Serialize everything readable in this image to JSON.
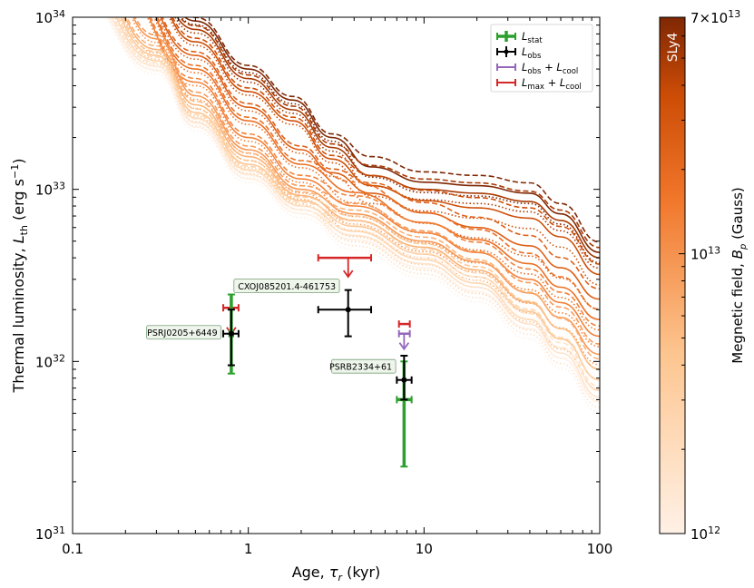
{
  "chart_data": {
    "type": "line",
    "xlabel": "Age, τ_r (kyr)",
    "ylabel": "Thermal luminosity, L_th (erg s⁻¹)",
    "xscale": "log",
    "yscale": "log",
    "xlim": [
      0.1,
      100
    ],
    "ylim": [
      1e+31,
      1e+34
    ],
    "xticks": [
      {
        "v": 0.1,
        "label": "0.1"
      },
      {
        "v": 1,
        "label": "1"
      },
      {
        "v": 10,
        "label": "10"
      },
      {
        "v": 100,
        "label": "100"
      }
    ],
    "yticks": [
      {
        "v": 1e+31,
        "base": "10",
        "exp": "31"
      },
      {
        "v": 1e+32,
        "base": "10",
        "exp": "32"
      },
      {
        "v": 1e+33,
        "base": "10",
        "exp": "33"
      },
      {
        "v": 1e+34,
        "base": "10",
        "exp": "34"
      }
    ],
    "grid": false,
    "legend_position": "top-right",
    "legend": [
      {
        "key": "stat",
        "main": "L",
        "sub": "stat",
        "extra": "",
        "color": "#2ca02c"
      },
      {
        "key": "obs",
        "main": "L",
        "sub": "obs",
        "extra": "",
        "color": "#000000"
      },
      {
        "key": "obs_cool",
        "main": "L",
        "sub": "obs",
        "extra": " + L",
        "sub2": "cool",
        "color": "#9467bd"
      },
      {
        "key": "max_cool",
        "main": "L",
        "sub": "max",
        "extra": " + L",
        "sub2": "cool",
        "color": "#d62728"
      }
    ],
    "colorbar": {
      "label": "Megnetic field, B_p (Gauss)",
      "eos_label": "SLy4",
      "min": 1000000000000.0,
      "max": 70000000000000.0,
      "ticks": [
        {
          "v": 1000000000000.0,
          "label": "10",
          "exp": "12"
        },
        {
          "v": 10000000000000.0,
          "label": "10",
          "exp": "13"
        },
        {
          "v": 70000000000000.0,
          "label": "7×10",
          "exp": "13"
        }
      ]
    },
    "sources": [
      {
        "name": "PSRJ0205+6449",
        "age": 0.8,
        "stat": {
          "age": 0.8,
          "y": 1.45e+32,
          "ylo": 8.5e+31,
          "yhi": 2.45e+32,
          "xlo": 0.78,
          "xhi": 0.82
        },
        "obs": {
          "age": 0.8,
          "y": 1.45e+32,
          "ylo": 9.5e+31,
          "yhi": 2e+32,
          "xlo": 0.72,
          "xhi": 0.88
        },
        "max_cool": {
          "age": 0.8,
          "y": 2.05e+32,
          "xlo": 0.72,
          "xhi": 0.88,
          "arrow_to": 1.45e+32
        },
        "label_age": 0.7,
        "label_y": 1.45e+32
      },
      {
        "name": "CXOJ085201.4-461753",
        "age": 3.7,
        "obs": {
          "age": 3.7,
          "y": 2e+32,
          "ylo": 1.4e+32,
          "yhi": 2.6e+32,
          "xlo": 2.5,
          "xhi": 5.0
        },
        "max_cool": {
          "age": 3.7,
          "y": 4e+32,
          "xlo": 2.5,
          "xhi": 5.0,
          "arrow_to": 3.1e+32
        },
        "label_age": 3.3,
        "label_y": 2.7e+32
      },
      {
        "name": "PSRB2334+61",
        "age": 7.7,
        "stat": {
          "age": 7.7,
          "y": 6e+31,
          "ylo": 2.45e+31,
          "yhi": 1e+32,
          "xlo": 7.0,
          "xhi": 8.5
        },
        "obs": {
          "age": 7.7,
          "y": 7.8e+31,
          "ylo": 6e+31,
          "yhi": 1.08e+32,
          "xlo": 7.0,
          "xhi": 8.5
        },
        "obs_cool": {
          "age": 7.7,
          "y": 1.45e+32,
          "xlo": 7.2,
          "xhi": 8.3,
          "arrow_to": 1.18e+32
        },
        "max_cool": {
          "age": 7.7,
          "y": 1.65e+32,
          "xlo": 7.2,
          "xhi": 8.3
        },
        "label_age": 6.9,
        "label_y": 9.2e+31
      }
    ],
    "curve_families": [
      {
        "B": 70000000000000.0,
        "anchors": [
          [
            0.25,
            2.1e+34
          ],
          [
            0.5,
            9.5e+33
          ],
          [
            1,
            5e+33
          ],
          [
            1.8,
            3.3e+33
          ],
          [
            3,
            2e+33
          ],
          [
            5,
            1.35e+33
          ],
          [
            10,
            1.1e+33
          ],
          [
            20,
            1.05e+33
          ],
          [
            40,
            9.5e+32
          ],
          [
            60,
            7.2e+32
          ],
          [
            100,
            4.3e+32
          ]
        ]
      },
      {
        "B": 50000000000000.0,
        "anchors": [
          [
            0.25,
            1.8e+34
          ],
          [
            0.5,
            8.5e+33
          ],
          [
            1,
            4.4e+33
          ],
          [
            1.8,
            2.9e+33
          ],
          [
            3,
            1.75e+33
          ],
          [
            5,
            1.2e+33
          ],
          [
            10,
            1e+33
          ],
          [
            20,
            9.5e+32
          ],
          [
            40,
            8.5e+32
          ],
          [
            60,
            6.6e+32
          ],
          [
            100,
            4e+32
          ]
        ]
      },
      {
        "B": 35000000000000.0,
        "anchors": [
          [
            0.25,
            1.55e+34
          ],
          [
            0.5,
            7.2e+33
          ],
          [
            1,
            3.7e+33
          ],
          [
            1.8,
            2.5e+33
          ],
          [
            3,
            1.5e+33
          ],
          [
            5,
            1.05e+33
          ],
          [
            10,
            8.6e+32
          ],
          [
            20,
            7.8e+32
          ],
          [
            40,
            6.8e+32
          ],
          [
            60,
            5.3e+32
          ],
          [
            100,
            3.2e+32
          ]
        ]
      },
      {
        "B": 25000000000000.0,
        "anchors": [
          [
            0.2,
            1.7e+34
          ],
          [
            0.5,
            6e+33
          ],
          [
            1,
            3e+33
          ],
          [
            2,
            1.7e+33
          ],
          [
            3,
            1.25e+33
          ],
          [
            5,
            9.5e+32
          ],
          [
            10,
            7.3e+32
          ],
          [
            20,
            6e+32
          ],
          [
            40,
            4.7e+32
          ],
          [
            60,
            3.5e+32
          ],
          [
            100,
            2.3e+32
          ]
        ]
      },
      {
        "B": 18000000000000.0,
        "anchors": [
          [
            0.2,
            1.5e+34
          ],
          [
            0.5,
            5e+33
          ],
          [
            1,
            2.5e+33
          ],
          [
            2,
            1.4e+33
          ],
          [
            4,
            9.6e+32
          ],
          [
            10,
            6.4e+32
          ],
          [
            20,
            5.1e+32
          ],
          [
            40,
            3.7e+32
          ],
          [
            60,
            2.7e+32
          ],
          [
            100,
            1.75e+32
          ]
        ]
      },
      {
        "B": 13000000000000.0,
        "anchors": [
          [
            0.18,
            1.5e+34
          ],
          [
            0.5,
            4.2e+33
          ],
          [
            1,
            2e+33
          ],
          [
            2,
            1.15e+33
          ],
          [
            4,
            8e+32
          ],
          [
            10,
            5.6e+32
          ],
          [
            20,
            4.3e+32
          ],
          [
            40,
            3e+32
          ],
          [
            60,
            2.2e+32
          ],
          [
            100,
            1.4e+32
          ]
        ]
      },
      {
        "B": 9000000000000.0,
        "anchors": [
          [
            0.15,
            1.6e+34
          ],
          [
            0.3,
            7.5e+33
          ],
          [
            0.5,
            3.5e+33
          ],
          [
            1,
            1.7e+33
          ],
          [
            2,
            1e+33
          ],
          [
            4,
            7.2e+32
          ],
          [
            10,
            5e+32
          ],
          [
            20,
            3.8e+32
          ],
          [
            40,
            2.5e+32
          ],
          [
            60,
            1.8e+32
          ],
          [
            100,
            1.1e+32
          ]
        ]
      },
      {
        "B": 6000000000000.0,
        "anchors": [
          [
            0.13,
            1.6e+34
          ],
          [
            0.3,
            6.5e+33
          ],
          [
            0.5,
            3.1e+33
          ],
          [
            1,
            1.55e+33
          ],
          [
            2,
            9.2e+32
          ],
          [
            4,
            6.6e+32
          ],
          [
            10,
            4.6e+32
          ],
          [
            20,
            3.4e+32
          ],
          [
            40,
            2.2e+32
          ],
          [
            60,
            1.55e+32
          ],
          [
            100,
            9e+31
          ]
        ]
      },
      {
        "B": 4000000000000.0,
        "anchors": [
          [
            0.12,
            1.6e+34
          ],
          [
            0.3,
            6e+33
          ],
          [
            0.5,
            2.8e+33
          ],
          [
            1,
            1.4e+33
          ],
          [
            2,
            8.6e+32
          ],
          [
            4,
            6.1e+32
          ],
          [
            10,
            4.2e+32
          ],
          [
            20,
            3.1e+32
          ],
          [
            40,
            1.95e+32
          ],
          [
            60,
            1.35e+32
          ],
          [
            100,
            7.8e+31
          ]
        ]
      },
      {
        "B": 2500000000000.0,
        "anchors": [
          [
            0.11,
            1.6e+34
          ],
          [
            0.3,
            5.6e+33
          ],
          [
            0.5,
            2.6e+33
          ],
          [
            1,
            1.3e+33
          ],
          [
            2,
            8e+32
          ],
          [
            4,
            5.7e+32
          ],
          [
            10,
            3.9e+32
          ],
          [
            20,
            2.85e+32
          ],
          [
            40,
            1.75e+32
          ],
          [
            60,
            1.2e+32
          ],
          [
            100,
            6.8e+31
          ]
        ]
      },
      {
        "B": 1600000000000.0,
        "anchors": [
          [
            0.1,
            1.65e+34
          ],
          [
            0.3,
            5.2e+33
          ],
          [
            0.5,
            2.45e+33
          ],
          [
            1,
            1.22e+33
          ],
          [
            2,
            7.6e+32
          ],
          [
            4,
            5.4e+32
          ],
          [
            10,
            3.7e+32
          ],
          [
            20,
            2.7e+32
          ],
          [
            40,
            1.65e+32
          ],
          [
            60,
            1.12e+32
          ],
          [
            100,
            6.2e+31
          ]
        ]
      },
      {
        "B": 1000000000000.0,
        "anchors": [
          [
            0.1,
            1.5e+34
          ],
          [
            0.3,
            4.9e+33
          ],
          [
            0.5,
            2.3e+33
          ],
          [
            1,
            1.15e+33
          ],
          [
            2,
            7.2e+32
          ],
          [
            4,
            5.1e+32
          ],
          [
            10,
            3.5e+32
          ],
          [
            20,
            2.55e+32
          ],
          [
            40,
            1.55e+32
          ],
          [
            60,
            1.05e+32
          ],
          [
            100,
            5.8e+31
          ]
        ]
      }
    ]
  }
}
